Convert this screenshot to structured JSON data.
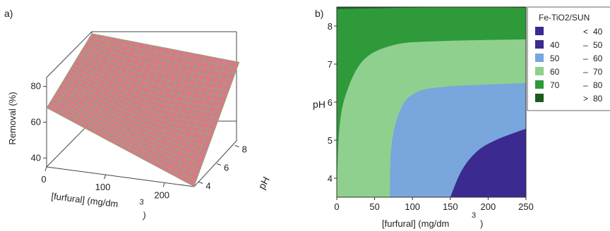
{
  "chart_data": [
    {
      "panel": "a)",
      "type": "surface3d",
      "zlabel": "Removal (%)",
      "xlabel": "[furfural] (mg/dm",
      "xlabel_sup": "3",
      "xlabel_close": ")",
      "ylabel": "pH",
      "xticks": [
        "0",
        "100",
        "200"
      ],
      "yticks": [
        "4",
        "6",
        "8"
      ],
      "zticks": [
        "40",
        "60",
        "80"
      ],
      "xlim": [
        0,
        250
      ],
      "ylim": [
        3.5,
        8.5
      ],
      "zlim": [
        35,
        85
      ],
      "surface_color": "#d9788a",
      "edge_color": "#6fc26a",
      "corners": [
        {
          "x": 0,
          "y": 3.5,
          "z": 68
        },
        {
          "x": 250,
          "y": 3.5,
          "z": 35
        },
        {
          "x": 0,
          "y": 8.5,
          "z": 84
        },
        {
          "x": 250,
          "y": 8.5,
          "z": 79
        }
      ]
    },
    {
      "panel": "b)",
      "type": "contour",
      "xlabel": "[furfural] (mg/dm",
      "xlabel_sup": "3",
      "xlabel_close": ")",
      "ylabel": "pH",
      "xticks": [
        "0",
        "50",
        "100",
        "150",
        "200",
        "250"
      ],
      "yticks": [
        "4",
        "5",
        "6",
        "7",
        "8"
      ],
      "xlim": [
        0,
        250
      ],
      "ylim": [
        3.5,
        8.5
      ],
      "legend_title": "Fe-TiO2/SUN",
      "legend_position": "right",
      "levels": [
        {
          "lo": "",
          "sep": "<",
          "hi": "40",
          "color": "#3b2a8f"
        },
        {
          "lo": "40",
          "sep": "–",
          "hi": "50",
          "color": "#3b2a8f"
        },
        {
          "lo": "50",
          "sep": "–",
          "hi": "60",
          "color": "#79a6dc"
        },
        {
          "lo": "60",
          "sep": "–",
          "hi": "70",
          "color": "#8fd08f"
        },
        {
          "lo": "70",
          "sep": "–",
          "hi": "80",
          "color": "#2f9a3a"
        },
        {
          "lo": "",
          "sep": ">",
          "hi": "80",
          "color": "#1c5a22"
        }
      ],
      "contours": [
        {
          "level": 50,
          "points": [
            [
              150,
              3.5
            ],
            [
              165,
              4.2
            ],
            [
              185,
              4.7
            ],
            [
              210,
              5.0
            ],
            [
              250,
              5.3
            ]
          ]
        },
        {
          "level": 60,
          "points": [
            [
              70,
              3.5
            ],
            [
              72,
              4.8
            ],
            [
              82,
              5.7
            ],
            [
              100,
              6.2
            ],
            [
              140,
              6.4
            ],
            [
              250,
              6.5
            ]
          ]
        },
        {
          "level": 70,
          "points": [
            [
              0,
              3.5
            ],
            [
              3,
              5.2
            ],
            [
              12,
              6.2
            ],
            [
              35,
              7.1
            ],
            [
              75,
              7.5
            ],
            [
              130,
              7.6
            ],
            [
              250,
              7.65
            ]
          ]
        },
        {
          "level": 80,
          "points": [
            [
              0,
              8.45
            ],
            [
              80,
              8.48
            ],
            [
              190,
              8.5
            ],
            [
              250,
              8.48
            ]
          ]
        }
      ]
    }
  ]
}
